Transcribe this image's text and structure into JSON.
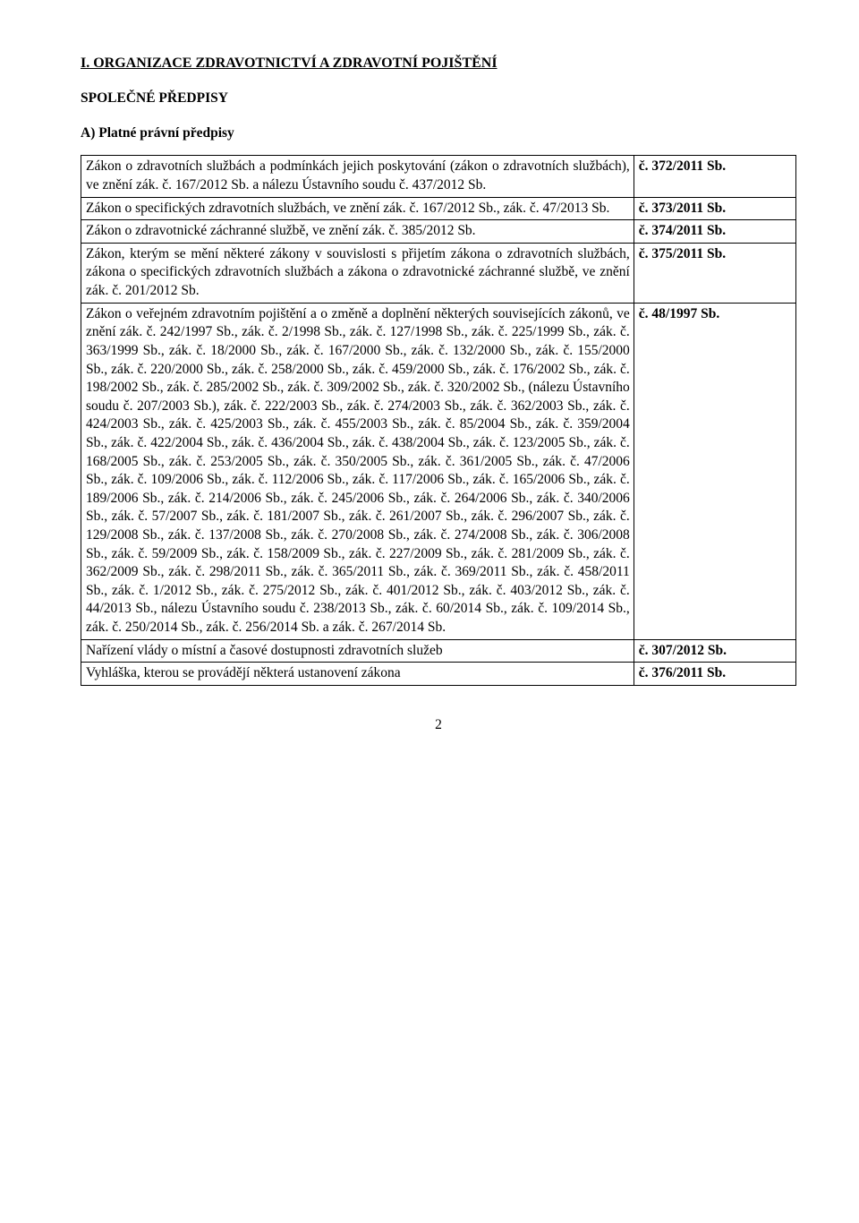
{
  "heading": "I. ORGANIZACE ZDRAVOTNICTVÍ A ZDRAVOTNÍ POJIŠTĚNÍ",
  "sub1": "SPOLEČNÉ PŘEDPISY",
  "sub2": "A) Platné právní předpisy",
  "rows": [
    {
      "left": "Zákon o zdravotních službách a podmínkách jejich poskytování (zákon o zdravotních službách), ve znění zák. č. 167/2012 Sb. a nálezu Ústavního soudu č. 437/2012 Sb.",
      "right": "č. 372/2011 Sb."
    },
    {
      "left": "Zákon o specifických zdravotních službách, ve znění zák. č. 167/2012 Sb., zák. č. 47/2013 Sb.",
      "right": "č. 373/2011 Sb."
    },
    {
      "left": "Zákon o zdravotnické záchranné službě, ve znění zák. č. 385/2012 Sb.",
      "right": "č. 374/2011 Sb."
    },
    {
      "left": "Zákon, kterým se mění některé zákony v souvislosti s přijetím zákona o zdravotních službách, zákona o specifických zdravotních službách a zákona o zdravotnické záchranné službě, ve znění zák. č. 201/2012 Sb.",
      "right": "č. 375/2011 Sb."
    },
    {
      "left": "Zákon o veřejném zdravotním pojištění a o změně a doplnění některých souvisejících zákonů, ve znění zák. č. 242/1997 Sb., zák. č. 2/1998 Sb., zák. č. 127/1998 Sb., zák. č. 225/1999 Sb., zák. č. 363/1999 Sb., zák. č. 18/2000 Sb., zák. č. 167/2000 Sb., zák. č. 132/2000 Sb., zák. č. 155/2000 Sb., zák. č. 220/2000 Sb., zák. č. 258/2000 Sb., zák. č. 459/2000 Sb., zák. č. 176/2002 Sb., zák. č. 198/2002 Sb., zák. č. 285/2002 Sb., zák. č. 309/2002 Sb., zák. č. 320/2002 Sb., (nálezu Ústavního soudu č. 207/2003 Sb.), zák. č. 222/2003 Sb., zák. č. 274/2003 Sb., zák. č. 362/2003 Sb., zák. č. 424/2003 Sb., zák. č. 425/2003 Sb., zák. č. 455/2003 Sb., zák. č. 85/2004 Sb., zák. č. 359/2004 Sb., zák. č. 422/2004 Sb., zák. č. 436/2004 Sb., zák. č. 438/2004 Sb., zák. č. 123/2005 Sb., zák. č. 168/2005 Sb., zák. č. 253/2005 Sb., zák. č. 350/2005 Sb., zák. č. 361/2005 Sb., zák. č. 47/2006 Sb., zák. č. 109/2006 Sb., zák. č. 112/2006 Sb., zák. č. 117/2006 Sb., zák. č. 165/2006 Sb., zák. č. 189/2006 Sb., zák. č. 214/2006 Sb., zák. č. 245/2006 Sb., zák. č. 264/2006 Sb., zák. č. 340/2006 Sb., zák. č. 57/2007 Sb., zák. č. 181/2007 Sb., zák. č. 261/2007 Sb., zák. č. 296/2007 Sb., zák. č. 129/2008 Sb., zák. č. 137/2008 Sb., zák. č. 270/2008 Sb., zák. č. 274/2008 Sb., zák. č. 306/2008 Sb., zák. č. 59/2009 Sb., zák. č. 158/2009 Sb., zák. č. 227/2009 Sb., zák. č. 281/2009 Sb., zák. č. 362/2009 Sb., zák. č. 298/2011 Sb., zák. č. 365/2011 Sb., zák. č. 369/2011 Sb., zák. č. 458/2011 Sb., zák. č. 1/2012 Sb., zák. č. 275/2012 Sb., zák. č. 401/2012 Sb., zák. č. 403/2012 Sb., zák. č. 44/2013 Sb., nálezu Ústavního soudu č. 238/2013 Sb., zák. č. 60/2014 Sb., zák. č. 109/2014 Sb., zák. č. 250/2014 Sb., zák. č. 256/2014 Sb. a zák. č. 267/2014 Sb.",
      "right": "č. 48/1997 Sb."
    },
    {
      "left": "Nařízení vlády o místní a časové dostupnosti zdravotních služeb",
      "right": "č. 307/2012 Sb."
    },
    {
      "left": "Vyhláška, kterou se provádějí některá ustanovení zákona",
      "right": "č. 376/2011 Sb."
    }
  ],
  "pagenum": "2"
}
